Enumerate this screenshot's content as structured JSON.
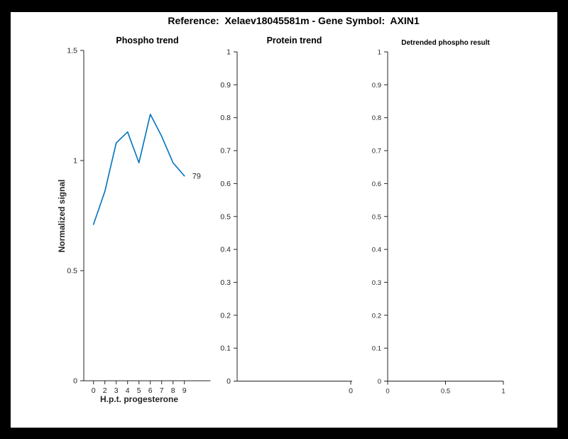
{
  "figure": {
    "title": "Reference:  Xelaev18045581m - Gene Symbol:  AXIN1"
  },
  "colors": {
    "background": "#ffffff",
    "frame": "#000000",
    "axis": "#262626",
    "line": "#0072BD"
  },
  "chart_data": [
    {
      "type": "line",
      "title": "Phospho trend",
      "xlabel": "H.p.t. progesterone",
      "ylabel": "Normalized signal",
      "ylim": [
        0,
        1.5
      ],
      "y_ticks": [
        0,
        0.5,
        1,
        1.5
      ],
      "y_tick_labels": [
        "0",
        "0.5",
        "1",
        "1.5"
      ],
      "x": [
        0,
        2,
        3,
        4,
        5,
        6,
        7,
        8,
        9
      ],
      "x_tick_labels": [
        "0",
        "2",
        "3",
        "4",
        "5",
        "6",
        "7",
        "8",
        "9"
      ],
      "grid": false,
      "legend": "none",
      "series": [
        {
          "name": "79",
          "end_label": "79",
          "color": "#0072BD",
          "values": [
            0.71,
            0.86,
            1.08,
            1.13,
            0.99,
            1.21,
            1.11,
            0.99,
            0.93
          ]
        }
      ]
    },
    {
      "type": "line",
      "title": "Protein trend",
      "xlabel": "",
      "ylabel": "",
      "ylim": [
        0,
        1
      ],
      "y_ticks": [
        0,
        0.1,
        0.2,
        0.3,
        0.4,
        0.5,
        0.6,
        0.7,
        0.8,
        0.9,
        1
      ],
      "y_tick_labels": [
        "0",
        "0.1",
        "0.2",
        "0.3",
        "0.4",
        "0.5",
        "0.6",
        "0.7",
        "0.8",
        "0.9",
        "1"
      ],
      "x_tick_labels": [
        "0"
      ],
      "grid": false,
      "legend": "none",
      "series": []
    },
    {
      "type": "line",
      "title": "Detrended phospho result",
      "xlabel": "",
      "ylabel": "",
      "ylim": [
        0,
        1
      ],
      "y_ticks": [
        0,
        0.1,
        0.2,
        0.3,
        0.4,
        0.5,
        0.6,
        0.7,
        0.8,
        0.9,
        1
      ],
      "y_tick_labels": [
        "0",
        "0.1",
        "0.2",
        "0.3",
        "0.4",
        "0.5",
        "0.6",
        "0.7",
        "0.8",
        "0.9",
        "1"
      ],
      "x_tick_labels": [
        "0",
        "0.5",
        "1"
      ],
      "grid": false,
      "legend": "none",
      "series": []
    }
  ]
}
